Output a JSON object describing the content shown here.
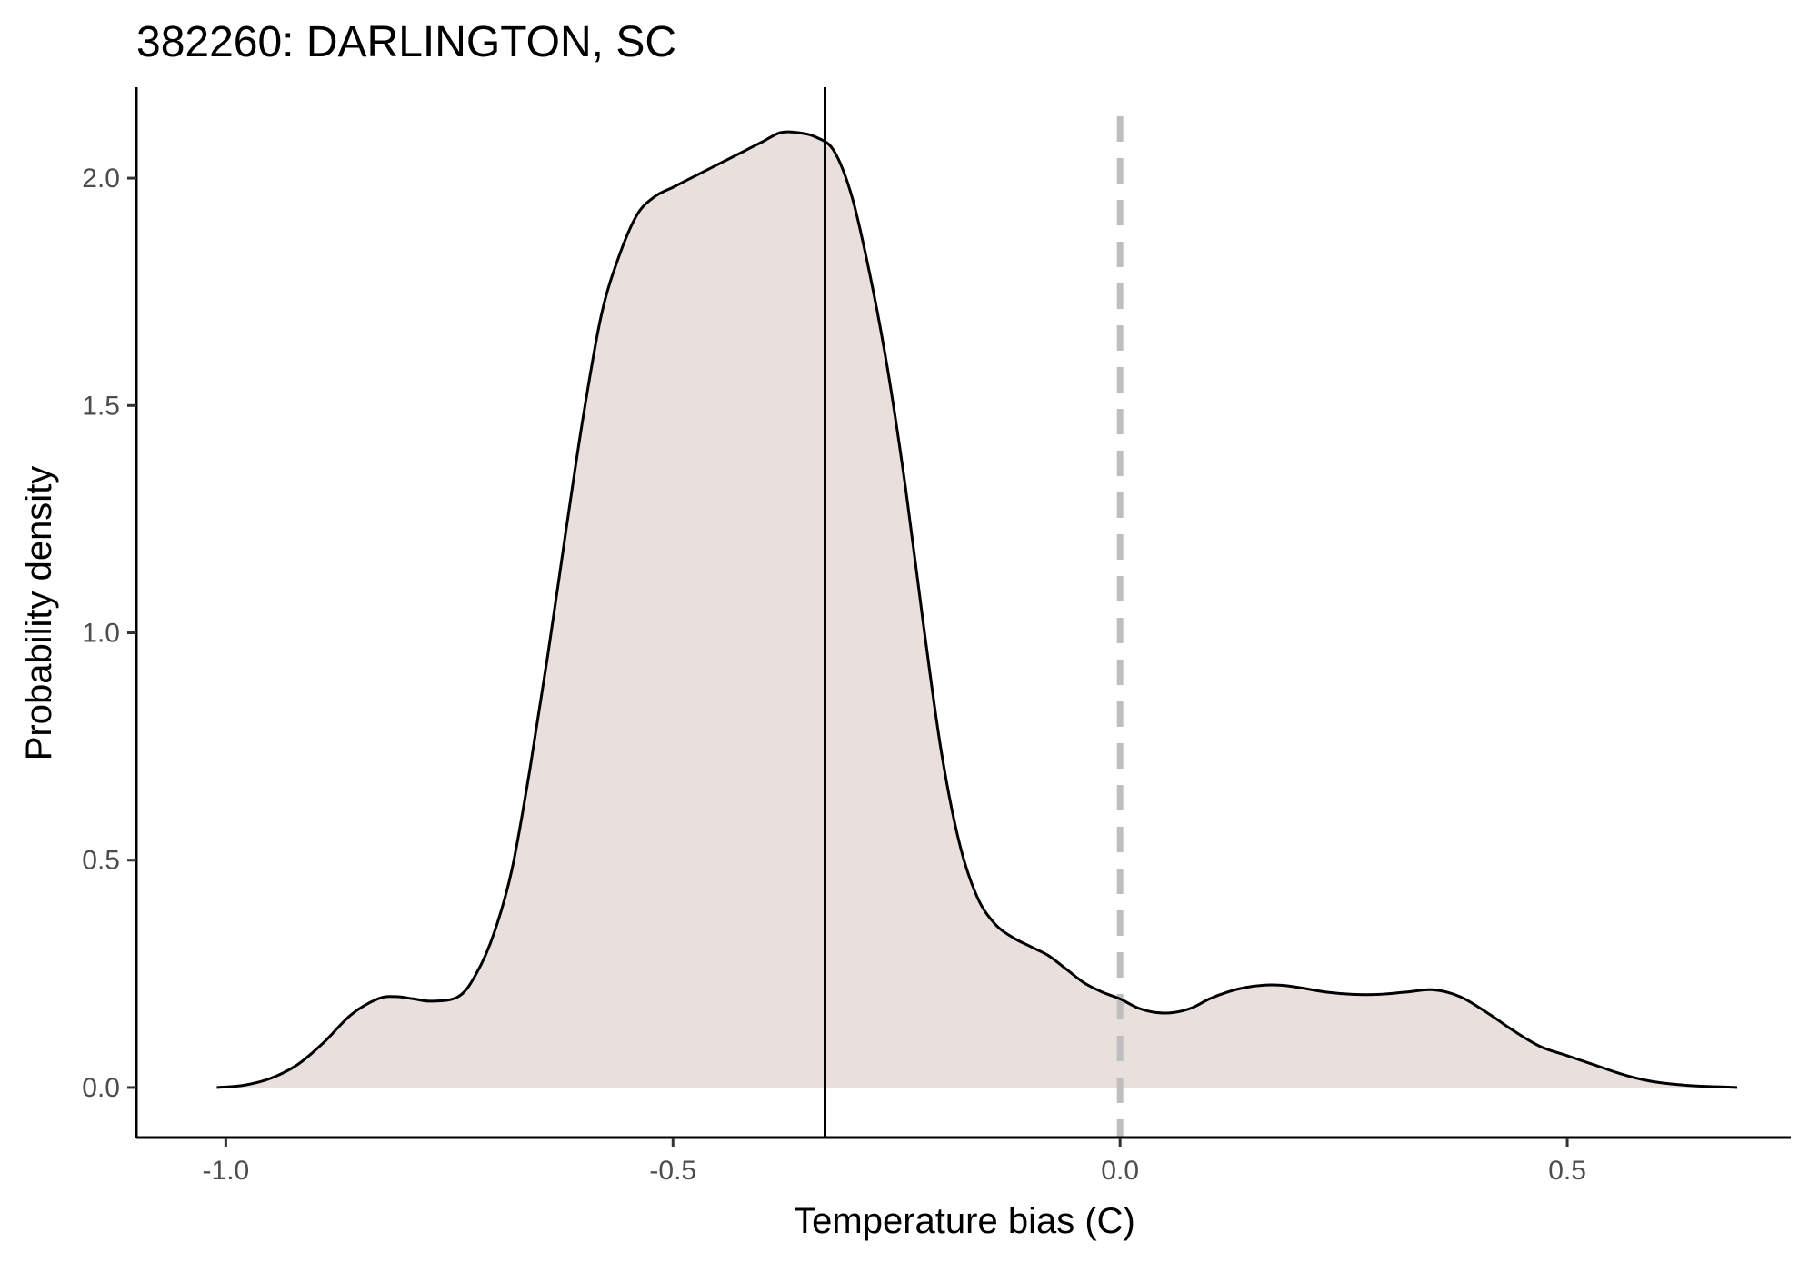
{
  "chart_data": {
    "type": "area",
    "title": "382260: DARLINGTON, SC",
    "xlabel": "Temperature bias (C)",
    "ylabel": "Probability density",
    "xlim": [
      -1.1,
      0.75
    ],
    "ylim": [
      -0.11,
      2.2
    ],
    "x_ticks": [
      {
        "value": -1.0,
        "label": "-1.0"
      },
      {
        "value": -0.5,
        "label": "-0.5"
      },
      {
        "value": 0.0,
        "label": "0.0"
      },
      {
        "value": 0.5,
        "label": "0.5"
      }
    ],
    "y_ticks": [
      {
        "value": 0.0,
        "label": "0.0"
      },
      {
        "value": 0.5,
        "label": "0.5"
      },
      {
        "value": 1.0,
        "label": "1.0"
      },
      {
        "value": 1.5,
        "label": "1.5"
      },
      {
        "value": 2.0,
        "label": "2.0"
      }
    ],
    "grid": false,
    "legend": "none",
    "fill_color": "#e9dfdc",
    "line_color": "#000000",
    "reference_lines": [
      {
        "x": -0.33,
        "style": "solid",
        "color": "#000000"
      },
      {
        "x": 0.0,
        "style": "dashed",
        "color": "#bebebe"
      }
    ],
    "x": [
      -1.01,
      -0.98,
      -0.95,
      -0.92,
      -0.89,
      -0.86,
      -0.83,
      -0.81,
      -0.79,
      -0.77,
      -0.74,
      -0.72,
      -0.7,
      -0.68,
      -0.66,
      -0.64,
      -0.62,
      -0.6,
      -0.58,
      -0.56,
      -0.54,
      -0.52,
      -0.5,
      -0.48,
      -0.46,
      -0.44,
      -0.42,
      -0.4,
      -0.38,
      -0.36,
      -0.34,
      -0.32,
      -0.3,
      -0.28,
      -0.26,
      -0.24,
      -0.22,
      -0.2,
      -0.18,
      -0.16,
      -0.14,
      -0.12,
      -0.1,
      -0.08,
      -0.06,
      -0.04,
      -0.02,
      0.0,
      0.02,
      0.04,
      0.06,
      0.08,
      0.1,
      0.12,
      0.14,
      0.16,
      0.18,
      0.2,
      0.23,
      0.26,
      0.29,
      0.32,
      0.35,
      0.38,
      0.41,
      0.44,
      0.47,
      0.5,
      0.53,
      0.56,
      0.59,
      0.62,
      0.65,
      0.68,
      0.69
    ],
    "y": [
      0.0,
      0.005,
      0.02,
      0.05,
      0.1,
      0.16,
      0.195,
      0.2,
      0.195,
      0.19,
      0.2,
      0.25,
      0.34,
      0.48,
      0.7,
      0.95,
      1.22,
      1.48,
      1.7,
      1.83,
      1.92,
      1.96,
      1.98,
      2.0,
      2.02,
      2.04,
      2.06,
      2.08,
      2.1,
      2.1,
      2.09,
      2.06,
      1.96,
      1.79,
      1.58,
      1.32,
      1.02,
      0.74,
      0.54,
      0.42,
      0.36,
      0.33,
      0.31,
      0.29,
      0.26,
      0.23,
      0.21,
      0.195,
      0.175,
      0.165,
      0.165,
      0.175,
      0.195,
      0.21,
      0.22,
      0.225,
      0.225,
      0.22,
      0.21,
      0.205,
      0.205,
      0.21,
      0.215,
      0.2,
      0.165,
      0.125,
      0.09,
      0.07,
      0.05,
      0.03,
      0.015,
      0.007,
      0.003,
      0.001,
      0.0
    ]
  }
}
